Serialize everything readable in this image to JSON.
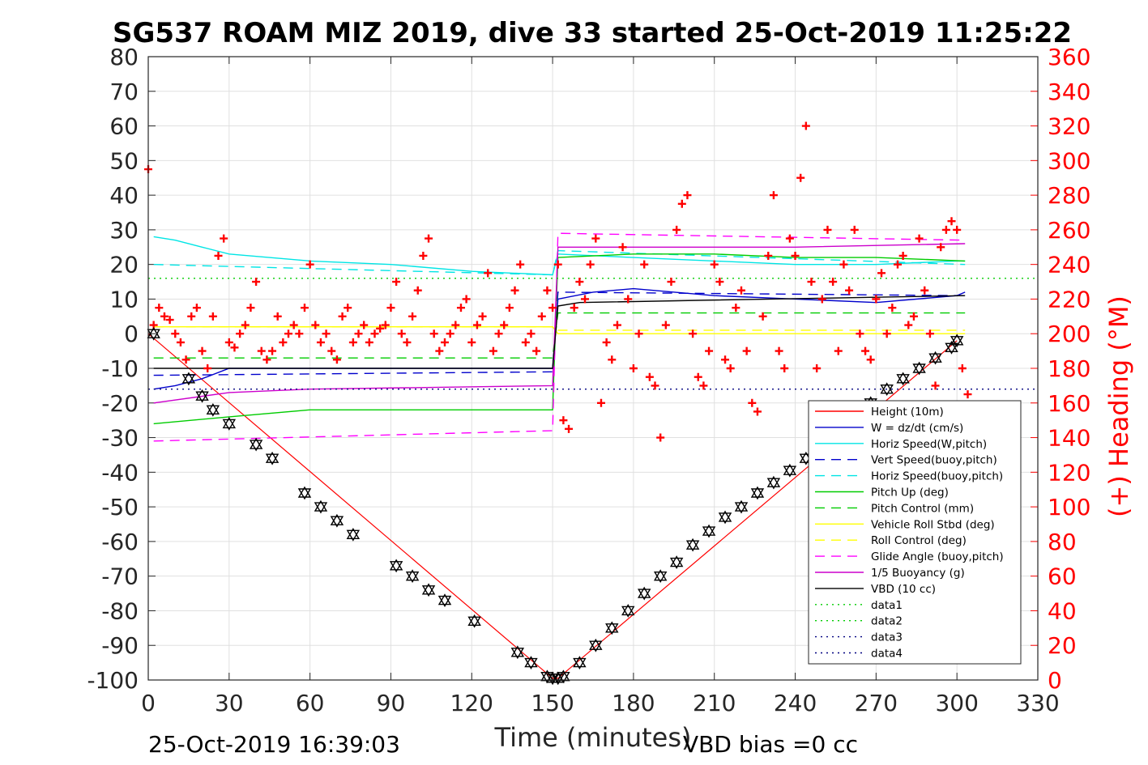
{
  "chart_data": {
    "type": "line",
    "title": "SG537 ROAM MIZ 2019, dive 33 started 25-Oct-2019 11:25:22",
    "xlabel": "Time (minutes)",
    "ylabel_right": "(+) Heading (°M)",
    "xlim": [
      0,
      330
    ],
    "ylim": [
      -100,
      80
    ],
    "ylim_right": [
      0,
      360
    ],
    "x_ticks": [
      "0",
      "30",
      "60",
      "90",
      "120",
      "150",
      "180",
      "210",
      "240",
      "270",
      "300",
      "330"
    ],
    "y_ticks": [
      "80",
      "70",
      "60",
      "50",
      "40",
      "30",
      "20",
      "10",
      "0",
      "-10",
      "-20",
      "-30",
      "-40",
      "-50",
      "-60",
      "-70",
      "-80",
      "-90",
      "-100"
    ],
    "y2_ticks": [
      "360",
      "340",
      "320",
      "300",
      "280",
      "260",
      "240",
      "220",
      "200",
      "180",
      "160",
      "140",
      "120",
      "100",
      "80",
      "60",
      "40",
      "20",
      "0"
    ],
    "grid": true,
    "legend_position": "bottom-right",
    "footer_left": "25-Oct-2019 16:39:03",
    "footer_right": "VBD bias =0 cc",
    "legend": [
      {
        "label": "Height (10m)",
        "color": "#ff0000",
        "dash": "solid"
      },
      {
        "label": "W = dz/dt (cm/s)",
        "color": "#0000cc",
        "dash": "solid"
      },
      {
        "label": "Horiz Speed(W,pitch)",
        "color": "#00e5e5",
        "dash": "solid"
      },
      {
        "label": "Vert Speed(buoy,pitch)",
        "color": "#0000cc",
        "dash": "dashed"
      },
      {
        "label": "Horiz Speed(buoy,pitch)",
        "color": "#00e5e5",
        "dash": "dashed"
      },
      {
        "label": "Pitch Up (deg)",
        "color": "#00cc00",
        "dash": "solid"
      },
      {
        "label": "Pitch Control (mm)",
        "color": "#00cc00",
        "dash": "dashed"
      },
      {
        "label": "Vehicle Roll Stbd (deg)",
        "color": "#ffff00",
        "dash": "solid"
      },
      {
        "label": "Roll Control (deg)",
        "color": "#ffff00",
        "dash": "dashed"
      },
      {
        "label": "Glide Angle (buoy,pitch)",
        "color": "#ff00ff",
        "dash": "dashed"
      },
      {
        "label": "1/5 Buoyancy (g)",
        "color": "#cc00cc",
        "dash": "solid"
      },
      {
        "label": "VBD (10 cc)",
        "color": "#000000",
        "dash": "solid"
      },
      {
        "label": "data1",
        "color": "#00cc00",
        "dash": "dotted"
      },
      {
        "label": "data2",
        "color": "#00cc00",
        "dash": "dotted"
      },
      {
        "label": "data3",
        "color": "#000080",
        "dash": "dotted"
      },
      {
        "label": "data4",
        "color": "#000080",
        "dash": "dotted"
      }
    ],
    "series": [
      {
        "name": "Height (10m)",
        "x": [
          0,
          150,
          152,
          300
        ],
        "y": [
          0,
          -99.5,
          -99.5,
          -2
        ]
      },
      {
        "name": "W = dz/dt (cm/s)",
        "x": [
          2,
          10,
          20,
          30,
          60,
          90,
          120,
          150,
          152,
          165,
          180,
          210,
          240,
          270,
          300,
          303
        ],
        "y": [
          -16,
          -15,
          -13,
          -10,
          -10,
          -10,
          -10,
          -10,
          10,
          12,
          13,
          11,
          10,
          9,
          11,
          12
        ]
      },
      {
        "name": "Horiz Speed(W,pitch)",
        "x": [
          2,
          10,
          20,
          30,
          60,
          90,
          120,
          150,
          152,
          180,
          210,
          240,
          270,
          300,
          303
        ],
        "y": [
          28,
          27,
          25,
          23,
          21,
          20,
          18,
          17,
          23,
          22,
          21,
          20,
          20,
          21,
          21
        ]
      },
      {
        "name": "Vert Speed(buoy,pitch)",
        "x": [
          2,
          150,
          152,
          303
        ],
        "y": [
          -12,
          -11,
          12,
          11
        ]
      },
      {
        "name": "Horiz Speed(buoy,pitch)",
        "x": [
          2,
          150,
          152,
          303
        ],
        "y": [
          20,
          17,
          24,
          20
        ]
      },
      {
        "name": "Pitch Up (deg)",
        "x": [
          2,
          30,
          60,
          90,
          120,
          150,
          152,
          180,
          210,
          240,
          270,
          303
        ],
        "y": [
          -26,
          -24,
          -22,
          -22,
          -22,
          -22,
          22,
          23,
          23,
          22,
          22,
          21
        ]
      },
      {
        "name": "Pitch Control (mm)",
        "x": [
          2,
          150,
          152,
          303
        ],
        "y": [
          -7,
          -7,
          6,
          6
        ]
      },
      {
        "name": "Vehicle Roll Stbd (deg)",
        "x": [
          2,
          150,
          152,
          303
        ],
        "y": [
          2,
          2,
          0,
          0
        ]
      },
      {
        "name": "Roll Control (deg)",
        "x": [
          2,
          150,
          152,
          303
        ],
        "y": [
          2,
          2,
          1,
          1
        ]
      },
      {
        "name": "Glide Angle (buoy,pitch)",
        "x": [
          2,
          150,
          152,
          303
        ],
        "y": [
          -31,
          -28,
          29,
          27
        ]
      },
      {
        "name": "1/5 Buoyancy (g)",
        "x": [
          2,
          30,
          60,
          150,
          152,
          240,
          303
        ],
        "y": [
          -20,
          -17,
          -16,
          -15,
          25,
          25,
          26
        ]
      },
      {
        "name": "VBD (10 cc)",
        "x": [
          2,
          150,
          152,
          160,
          303
        ],
        "y": [
          -10,
          -10,
          8,
          9,
          11
        ]
      },
      {
        "name": "data1",
        "x": [
          0,
          330
        ],
        "y": [
          16,
          16
        ]
      },
      {
        "name": "data3",
        "x": [
          0,
          330
        ],
        "y": [
          -16,
          -16
        ]
      }
    ],
    "heading_points": {
      "x": [
        0,
        2,
        4,
        6,
        8,
        10,
        12,
        14,
        16,
        18,
        20,
        22,
        24,
        26,
        28,
        30,
        32,
        34,
        36,
        38,
        40,
        42,
        44,
        46,
        48,
        50,
        52,
        54,
        56,
        58,
        60,
        62,
        64,
        66,
        68,
        70,
        72,
        74,
        76,
        78,
        80,
        82,
        84,
        86,
        88,
        90,
        92,
        94,
        96,
        98,
        100,
        102,
        104,
        106,
        108,
        110,
        112,
        114,
        116,
        118,
        120,
        122,
        124,
        126,
        128,
        130,
        132,
        134,
        136,
        138,
        140,
        142,
        144,
        146,
        148,
        150,
        152,
        154,
        156,
        158,
        160,
        162,
        164,
        166,
        168,
        170,
        172,
        174,
        176,
        178,
        180,
        182,
        184,
        186,
        188,
        190,
        192,
        194,
        196,
        198,
        200,
        202,
        204,
        206,
        208,
        210,
        212,
        214,
        216,
        218,
        220,
        222,
        224,
        226,
        228,
        230,
        232,
        234,
        236,
        238,
        240,
        242,
        244,
        246,
        248,
        250,
        252,
        254,
        256,
        258,
        260,
        262,
        264,
        266,
        268,
        270,
        272,
        274,
        276,
        278,
        280,
        282,
        284,
        286,
        288,
        290,
        292,
        294,
        296,
        298,
        300,
        302,
        304
      ],
      "y": [
        295,
        205,
        215,
        210,
        208,
        200,
        195,
        185,
        210,
        215,
        190,
        180,
        210,
        245,
        255,
        195,
        192,
        200,
        205,
        215,
        230,
        190,
        185,
        190,
        210,
        195,
        200,
        205,
        200,
        215,
        240,
        205,
        195,
        200,
        190,
        185,
        210,
        215,
        195,
        200,
        205,
        195,
        200,
        203,
        205,
        215,
        230,
        200,
        195,
        210,
        225,
        245,
        255,
        200,
        190,
        195,
        200,
        205,
        215,
        220,
        195,
        205,
        210,
        235,
        190,
        200,
        205,
        215,
        225,
        240,
        195,
        200,
        190,
        210,
        225,
        215,
        240,
        150,
        145,
        215,
        230,
        220,
        240,
        255,
        160,
        195,
        185,
        205,
        250,
        220,
        180,
        200,
        240,
        175,
        170,
        140,
        205,
        230,
        260,
        275,
        280,
        200,
        175,
        170,
        190,
        240,
        230,
        185,
        180,
        215,
        225,
        190,
        160,
        155,
        210,
        245,
        280,
        190,
        180,
        255,
        245,
        290,
        320,
        230,
        180,
        220,
        260,
        230,
        190,
        240,
        225,
        260,
        200,
        190,
        185,
        220,
        235,
        200,
        215,
        240,
        245,
        205,
        210,
        255,
        225,
        200,
        170,
        250,
        260,
        265,
        260,
        180,
        165
      ]
    },
    "dive_markers": {
      "x": [
        2,
        15,
        20,
        24,
        30,
        40,
        46,
        58,
        64,
        70,
        76,
        92,
        98,
        104,
        110,
        121,
        137,
        142,
        148,
        150,
        152,
        154,
        160,
        166,
        172,
        178,
        184,
        190,
        196,
        202,
        208,
        214,
        220,
        226,
        232,
        238,
        244,
        250,
        256,
        262,
        268,
        274,
        280,
        286,
        292,
        298,
        300
      ],
      "y": [
        0,
        -13,
        -18,
        -22,
        -26,
        -32,
        -36,
        -46,
        -50,
        -54,
        -58,
        -67,
        -70,
        -74,
        -77,
        -83,
        -92,
        -95,
        -99,
        -99.5,
        -99.5,
        -99,
        -95,
        -90,
        -85,
        -80,
        -75,
        -70,
        -66,
        -61,
        -57,
        -53,
        -50,
        -46,
        -43,
        -39.5,
        -36,
        -32,
        -28,
        -24,
        -20,
        -16,
        -13,
        -10,
        -7,
        -4,
        -2
      ]
    }
  }
}
